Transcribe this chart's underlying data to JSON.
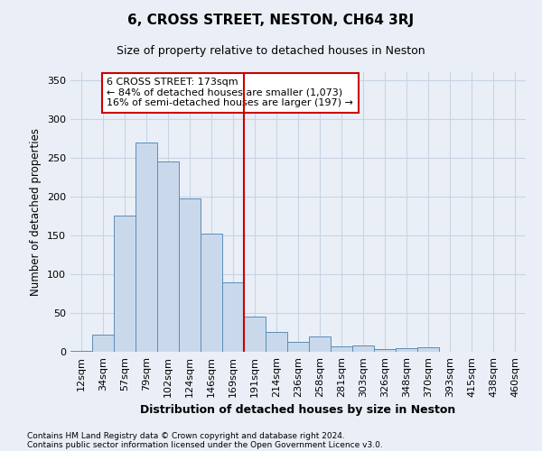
{
  "title": "6, CROSS STREET, NESTON, CH64 3RJ",
  "subtitle": "Size of property relative to detached houses in Neston",
  "xlabel": "Distribution of detached houses by size in Neston",
  "ylabel": "Number of detached properties",
  "bar_labels": [
    "12sqm",
    "34sqm",
    "57sqm",
    "79sqm",
    "102sqm",
    "124sqm",
    "146sqm",
    "169sqm",
    "191sqm",
    "214sqm",
    "236sqm",
    "258sqm",
    "281sqm",
    "303sqm",
    "326sqm",
    "348sqm",
    "370sqm",
    "393sqm",
    "415sqm",
    "438sqm",
    "460sqm"
  ],
  "bar_values": [
    1,
    22,
    175,
    270,
    245,
    197,
    152,
    89,
    45,
    25,
    13,
    20,
    7,
    8,
    4,
    5,
    6,
    0,
    0,
    0,
    0
  ],
  "bar_color": "#c9d9eb",
  "bar_edge_color": "#5b8db8",
  "vline_x": 7.5,
  "vline_color": "#cc0000",
  "annotation_text": "6 CROSS STREET: 173sqm\n← 84% of detached houses are smaller (1,073)\n16% of semi-detached houses are larger (197) →",
  "annotation_box_color": "#ffffff",
  "annotation_box_edge": "#cc0000",
  "ylim": [
    0,
    360
  ],
  "yticks": [
    0,
    50,
    100,
    150,
    200,
    250,
    300,
    350
  ],
  "grid_color": "#c8d4e4",
  "background_color": "#eaeff7",
  "footnote1": "Contains HM Land Registry data © Crown copyright and database right 2024.",
  "footnote2": "Contains public sector information licensed under the Open Government Licence v3.0."
}
